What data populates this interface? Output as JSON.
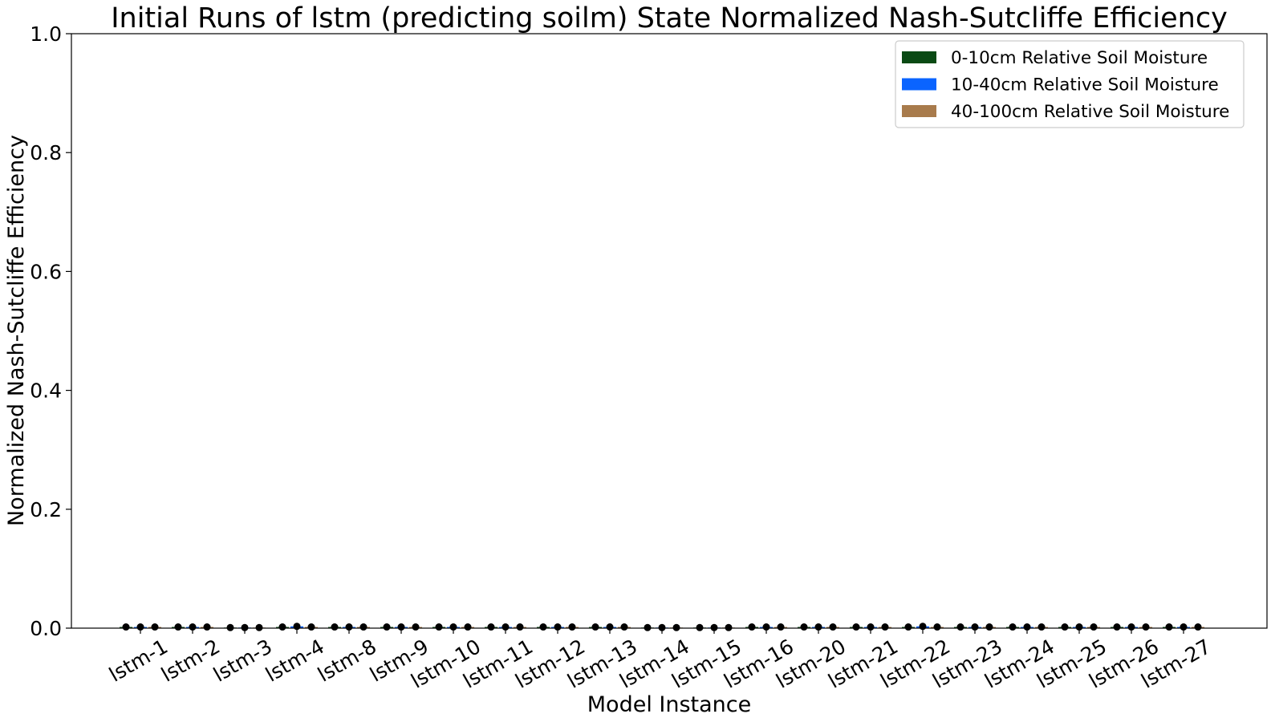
{
  "chart_data": {
    "type": "bar",
    "title": "Initial Runs of lstm (predicting soilm) State Normalized Nash-Sutcliffe Efficiency",
    "xlabel": "Model Instance",
    "ylabel": "Normalized Nash-Sutcliffe Efficiency",
    "ylim": [
      0.0,
      1.0
    ],
    "yticks": [
      "0.0",
      "0.2",
      "0.4",
      "0.6",
      "0.8",
      "1.0"
    ],
    "grid": false,
    "legend_position": "top-right",
    "categories": [
      "lstm-1",
      "lstm-2",
      "lstm-3",
      "lstm-4",
      "lstm-8",
      "lstm-9",
      "lstm-10",
      "lstm-11",
      "lstm-12",
      "lstm-13",
      "lstm-14",
      "lstm-15",
      "lstm-16",
      "lstm-20",
      "lstm-21",
      "lstm-22",
      "lstm-23",
      "lstm-24",
      "lstm-25",
      "lstm-26",
      "lstm-27"
    ],
    "series": [
      {
        "name": "0-10cm Relative Soil Moisture",
        "color": "#0a4a14",
        "values": [
          0.002,
          0.002,
          0.001,
          0.002,
          0.002,
          0.002,
          0.002,
          0.002,
          0.002,
          0.002,
          0.001,
          0.001,
          0.002,
          0.002,
          0.002,
          0.002,
          0.002,
          0.002,
          0.002,
          0.002,
          0.002
        ]
      },
      {
        "name": "10-40cm Relative Soil Moisture",
        "color": "#0a64ff",
        "values": [
          0.002,
          0.002,
          0.001,
          0.003,
          0.002,
          0.002,
          0.002,
          0.002,
          0.002,
          0.002,
          0.001,
          0.001,
          0.002,
          0.002,
          0.002,
          0.003,
          0.002,
          0.002,
          0.002,
          0.002,
          0.002
        ]
      },
      {
        "name": "40-100cm Relative Soil Moisture",
        "color": "#a87b4c",
        "values": [
          0.002,
          0.002,
          0.001,
          0.002,
          0.002,
          0.002,
          0.002,
          0.002,
          0.002,
          0.002,
          0.001,
          0.001,
          0.002,
          0.002,
          0.002,
          0.002,
          0.002,
          0.002,
          0.002,
          0.002,
          0.002
        ]
      }
    ]
  }
}
